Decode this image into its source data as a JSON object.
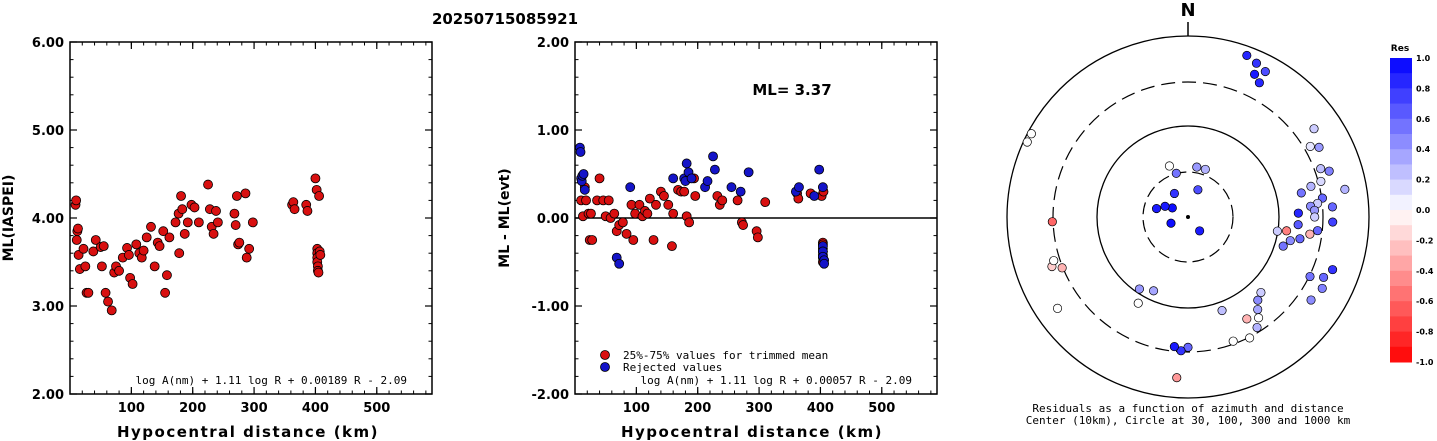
{
  "title": "20250715085921",
  "chart_data": [
    {
      "type": "scatter",
      "ylabel": "ML(IASPEI)",
      "xlabel": "Hypocentral distance (km)",
      "xlim": [
        0,
        590
      ],
      "ylim": [
        2.0,
        6.0
      ],
      "xticks": [
        "100",
        "200",
        "300",
        "400",
        "500"
      ],
      "yticks": [
        "2.00",
        "3.00",
        "4.00",
        "5.00",
        "6.00"
      ],
      "formula": "log A(nm) + 1.11 log R + 0.00189 R - 2.09",
      "points": [
        [
          9,
          4.15
        ],
        [
          10,
          4.2
        ],
        [
          11,
          3.75
        ],
        [
          12,
          3.85
        ],
        [
          13,
          3.88
        ],
        [
          14,
          3.58
        ],
        [
          16,
          3.42
        ],
        [
          22,
          3.65
        ],
        [
          25,
          3.45
        ],
        [
          27,
          3.15
        ],
        [
          30,
          3.15
        ],
        [
          38,
          3.62
        ],
        [
          42,
          3.75
        ],
        [
          50,
          3.67
        ],
        [
          52,
          3.45
        ],
        [
          55,
          3.68
        ],
        [
          58,
          3.15
        ],
        [
          62,
          3.05
        ],
        [
          68,
          2.95
        ],
        [
          72,
          3.38
        ],
        [
          75,
          3.45
        ],
        [
          80,
          3.4
        ],
        [
          86,
          3.55
        ],
        [
          93,
          3.66
        ],
        [
          96,
          3.58
        ],
        [
          98,
          3.32
        ],
        [
          102,
          3.25
        ],
        [
          108,
          3.7
        ],
        [
          113,
          3.6
        ],
        [
          117,
          3.55
        ],
        [
          120,
          3.63
        ],
        [
          125,
          3.78
        ],
        [
          132,
          3.9
        ],
        [
          138,
          3.45
        ],
        [
          143,
          3.72
        ],
        [
          146,
          3.68
        ],
        [
          152,
          3.85
        ],
        [
          155,
          3.15
        ],
        [
          158,
          3.35
        ],
        [
          162,
          3.78
        ],
        [
          172,
          3.95
        ],
        [
          177,
          4.05
        ],
        [
          178,
          3.6
        ],
        [
          181,
          4.25
        ],
        [
          183,
          4.1
        ],
        [
          187,
          3.82
        ],
        [
          192,
          3.95
        ],
        [
          198,
          4.15
        ],
        [
          203,
          4.12
        ],
        [
          210,
          3.95
        ],
        [
          225,
          4.38
        ],
        [
          228,
          4.1
        ],
        [
          231,
          3.9
        ],
        [
          234,
          3.82
        ],
        [
          238,
          4.08
        ],
        [
          241,
          3.95
        ],
        [
          268,
          4.05
        ],
        [
          270,
          3.92
        ],
        [
          272,
          4.25
        ],
        [
          274,
          3.7
        ],
        [
          276,
          3.72
        ],
        [
          286,
          4.28
        ],
        [
          288,
          3.55
        ],
        [
          292,
          3.65
        ],
        [
          298,
          3.95
        ],
        [
          362,
          4.15
        ],
        [
          364,
          4.18
        ],
        [
          366,
          4.1
        ],
        [
          385,
          4.15
        ],
        [
          387,
          4.08
        ],
        [
          400,
          4.45
        ],
        [
          402,
          4.32
        ],
        [
          406,
          4.25
        ],
        [
          403,
          3.65
        ],
        [
          403,
          3.6
        ],
        [
          403,
          3.55
        ],
        [
          403,
          3.5
        ],
        [
          404,
          3.45
        ],
        [
          404,
          3.4
        ],
        [
          405,
          3.38
        ],
        [
          407,
          3.62
        ],
        [
          408,
          3.58
        ]
      ]
    },
    {
      "type": "scatter",
      "ylabel": "ML - ML(evt)",
      "xlabel": "Hypocentral distance (km)",
      "xlim": [
        0,
        590
      ],
      "ylim": [
        -2.0,
        2.0
      ],
      "xticks": [
        "100",
        "200",
        "300",
        "400",
        "500"
      ],
      "yticks": [
        "-2.00",
        "-1.00",
        "0.00",
        "1.00",
        "2.00"
      ],
      "annotation": "ML= 3.37",
      "legend": [
        "25%-75% values for trimmed mean",
        "Rejected values"
      ],
      "formula": "log A(nm) + 1.11 log R + 0.00057 R - 2.09",
      "colors": {
        "used": "#d81010",
        "rejected": "#1414c8"
      },
      "series": [
        {
          "name": "25%-75% values for trimmed mean",
          "points": [
            [
              10,
              0.2
            ],
            [
              13,
              0.02
            ],
            [
              16,
              0.35
            ],
            [
              18,
              0.2
            ],
            [
              22,
              0.05
            ],
            [
              24,
              -0.25
            ],
            [
              26,
              0.05
            ],
            [
              28,
              -0.25
            ],
            [
              36,
              0.2
            ],
            [
              40,
              0.45
            ],
            [
              46,
              0.2
            ],
            [
              50,
              0.02
            ],
            [
              55,
              0.2
            ],
            [
              58,
              0.0
            ],
            [
              64,
              0.05
            ],
            [
              68,
              -0.15
            ],
            [
              72,
              -0.08
            ],
            [
              78,
              -0.05
            ],
            [
              84,
              -0.18
            ],
            [
              92,
              0.15
            ],
            [
              95,
              -0.25
            ],
            [
              98,
              0.05
            ],
            [
              105,
              0.15
            ],
            [
              110,
              0.02
            ],
            [
              114,
              0.08
            ],
            [
              118,
              0.05
            ],
            [
              122,
              0.22
            ],
            [
              128,
              -0.25
            ],
            [
              132,
              0.15
            ],
            [
              140,
              0.3
            ],
            [
              145,
              0.25
            ],
            [
              152,
              0.15
            ],
            [
              158,
              -0.32
            ],
            [
              160,
              0.05
            ],
            [
              168,
              0.32
            ],
            [
              173,
              0.3
            ],
            [
              178,
              0.3
            ],
            [
              182,
              0.02
            ],
            [
              186,
              -0.05
            ],
            [
              194,
              0.45
            ],
            [
              196,
              0.25
            ],
            [
              232,
              0.25
            ],
            [
              236,
              0.15
            ],
            [
              240,
              0.2
            ],
            [
              265,
              0.2
            ],
            [
              272,
              -0.05
            ],
            [
              274,
              -0.08
            ],
            [
              296,
              -0.15
            ],
            [
              298,
              -0.22
            ],
            [
              310,
              0.18
            ],
            [
              362,
              0.28
            ],
            [
              364,
              0.22
            ],
            [
              384,
              0.28
            ],
            [
              402,
              0.25
            ],
            [
              405,
              0.3
            ],
            [
              404,
              -0.28
            ],
            [
              404,
              -0.3
            ],
            [
              404,
              -0.35
            ],
            [
              404,
              -0.38
            ],
            [
              404,
              -0.42
            ],
            [
              404,
              -0.45
            ],
            [
              404,
              -0.5
            ]
          ]
        },
        {
          "name": "Rejected values",
          "points": [
            [
              8,
              0.8
            ],
            [
              9,
              0.75
            ],
            [
              10,
              0.45
            ],
            [
              11,
              0.42
            ],
            [
              12,
              0.48
            ],
            [
              14,
              0.5
            ],
            [
              16,
              0.32
            ],
            [
              68,
              -0.45
            ],
            [
              72,
              -0.52
            ],
            [
              90,
              0.35
            ],
            [
              160,
              0.45
            ],
            [
              178,
              0.45
            ],
            [
              180,
              0.42
            ],
            [
              182,
              0.62
            ],
            [
              185,
              0.52
            ],
            [
              190,
              0.45
            ],
            [
              212,
              0.35
            ],
            [
              216,
              0.42
            ],
            [
              225,
              0.7
            ],
            [
              228,
              0.55
            ],
            [
              255,
              0.35
            ],
            [
              270,
              0.3
            ],
            [
              283,
              0.52
            ],
            [
              360,
              0.3
            ],
            [
              365,
              0.35
            ],
            [
              390,
              0.25
            ],
            [
              398,
              0.55
            ],
            [
              404,
              0.35
            ],
            [
              404,
              -0.32
            ],
            [
              404,
              -0.38
            ],
            [
              404,
              -0.44
            ],
            [
              406,
              -0.48
            ],
            [
              406,
              -0.52
            ]
          ]
        }
      ]
    }
  ],
  "polar": {
    "north_label": "N",
    "caption_line1": "Residuals as a function of azimuth and distance",
    "caption_line2": "Center (10km), Circle at 30, 100, 300 and 1000 km",
    "stations": [
      [
        295,
        0.98,
        0.0
      ],
      [
        298,
        0.98,
        0.0
      ],
      [
        20,
        0.95,
        0.85
      ],
      [
        24,
        0.93,
        0.8
      ],
      [
        28,
        0.91,
        0.7
      ],
      [
        25,
        0.87,
        0.9
      ],
      [
        28,
        0.84,
        0.85
      ],
      [
        55,
        0.85,
        0.2
      ],
      [
        62,
        0.82,
        0.4
      ],
      [
        60,
        0.78,
        0.1
      ],
      [
        70,
        0.78,
        0.25
      ],
      [
        72,
        0.82,
        0.5
      ],
      [
        75,
        0.76,
        0.15
      ],
      [
        76,
        0.7,
        0.3
      ],
      [
        78,
        0.64,
        0.55
      ],
      [
        80,
        0.88,
        0.3
      ],
      [
        82,
        0.75,
        0.6
      ],
      [
        84,
        0.72,
        0.2
      ],
      [
        85,
        0.68,
        0.45
      ],
      [
        87,
        0.7,
        0.4
      ],
      [
        88,
        0.61,
        0.85
      ],
      [
        86,
        0.8,
        0.6
      ],
      [
        90,
        0.7,
        0.2
      ],
      [
        92,
        0.8,
        0.75
      ],
      [
        94,
        0.61,
        0.65
      ],
      [
        96,
        0.72,
        0.6
      ],
      [
        98,
        0.68,
        -0.3
      ],
      [
        98,
        0.55,
        -0.5
      ],
      [
        99,
        0.5,
        0.2
      ],
      [
        101,
        0.63,
        0.6
      ],
      [
        103,
        0.58,
        0.45
      ],
      [
        107,
        0.55,
        0.55
      ],
      [
        110,
        0.85,
        0.8
      ],
      [
        114,
        0.82,
        0.6
      ],
      [
        116,
        0.75,
        0.55
      ],
      [
        118,
        0.84,
        0.5
      ],
      [
        124,
        0.82,
        0.45
      ],
      [
        136,
        0.58,
        0.2
      ],
      [
        140,
        0.6,
        0.45
      ],
      [
        143,
        0.64,
        0.35
      ],
      [
        145,
        0.68,
        0.0
      ],
      [
        148,
        0.72,
        0.3
      ],
      [
        150,
        0.65,
        -0.3
      ],
      [
        153,
        0.75,
        0.0
      ],
      [
        160,
        0.55,
        0.25
      ],
      [
        160,
        0.73,
        0.0
      ],
      [
        180,
        0.72,
        0.6
      ],
      [
        183,
        0.74,
        0.8
      ],
      [
        184,
        0.89,
        -0.4
      ],
      [
        186,
        0.72,
        0.9
      ],
      [
        205,
        0.45,
        0.35
      ],
      [
        210,
        0.55,
        0.0
      ],
      [
        214,
        0.48,
        0.4
      ],
      [
        235,
        0.88,
        0.0
      ],
      [
        248,
        0.75,
        -0.3
      ],
      [
        250,
        0.8,
        -0.2
      ],
      [
        252,
        0.78,
        0.0
      ],
      [
        268,
        0.75,
        -0.6
      ],
      [
        10,
        0.28,
        0.4
      ],
      [
        20,
        0.28,
        0.3
      ],
      [
        340,
        0.3,
        0.0
      ],
      [
        345,
        0.25,
        0.55
      ],
      [
        300,
        0.1,
        0.95
      ],
      [
        295,
        0.14,
        0.9
      ],
      [
        285,
        0.18,
        0.9
      ],
      [
        250,
        0.1,
        0.95
      ],
      [
        330,
        0.15,
        0.8
      ],
      [
        20,
        0.16,
        0.7
      ],
      [
        140,
        0.1,
        0.9
      ]
    ],
    "colorbar": {
      "title": "Res",
      "labels": [
        "1.0",
        "0.8",
        "0.6",
        "0.4",
        "0.2",
        "0.0",
        "-0.2",
        "-0.4",
        "-0.6",
        "-0.8",
        "-1.0"
      ]
    }
  }
}
